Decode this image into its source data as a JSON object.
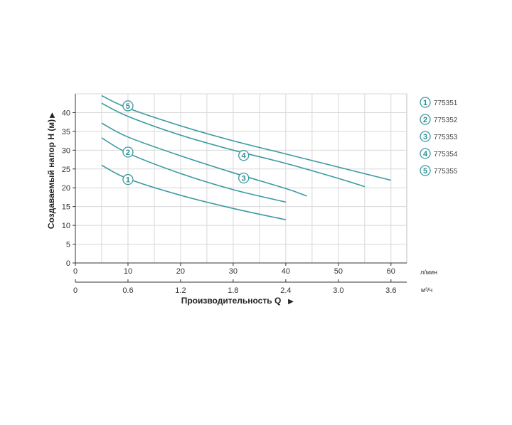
{
  "chart_data": {
    "type": "line",
    "xlabel": "Производительность Q",
    "ylabel": "Создаваемый напор H (м)",
    "x_unit_primary": "л/мин",
    "x_unit_secondary": "м³/ч",
    "xlim": [
      0,
      63
    ],
    "ylim": [
      0,
      45
    ],
    "x_ticks": [
      0,
      10,
      20,
      30,
      40,
      50,
      60
    ],
    "x_tick_labels": [
      "0",
      "10",
      "20",
      "30",
      "40",
      "50",
      "60"
    ],
    "x2_ticks": [
      0,
      10,
      20,
      30,
      40,
      50,
      60
    ],
    "x2_tick_labels": [
      "0",
      "0.6",
      "1.2",
      "1.8",
      "2.4",
      "3.0",
      "3.6"
    ],
    "y_ticks": [
      0,
      5,
      10,
      15,
      20,
      25,
      30,
      35,
      40
    ],
    "y_tick_labels": [
      "0",
      "5",
      "10",
      "15",
      "20",
      "25",
      "30",
      "35",
      "40"
    ],
    "grid": true,
    "legend_position": "right",
    "line_color": "#3a9aa0",
    "grid_color": "#d8d8d8",
    "series": [
      {
        "name": "775351",
        "marker": "1",
        "marker_at": [
          10,
          22.2
        ],
        "x": [
          5,
          10,
          20,
          30,
          40
        ],
        "y": [
          26,
          22.4,
          18,
          14.5,
          11.5
        ]
      },
      {
        "name": "775352",
        "marker": "2",
        "marker_at": [
          10,
          29.5
        ],
        "x": [
          5,
          10,
          20,
          30,
          40
        ],
        "y": [
          33.3,
          29.2,
          23.8,
          19.5,
          16.2
        ]
      },
      {
        "name": "775353",
        "marker": "3",
        "marker_at": [
          32,
          22.6
        ],
        "x": [
          5,
          10,
          20,
          30,
          40,
          44
        ],
        "y": [
          37.2,
          33.5,
          28.5,
          24,
          19.8,
          17.8
        ]
      },
      {
        "name": "775354",
        "marker": "4",
        "marker_at": [
          32,
          28.6
        ],
        "x": [
          5,
          10,
          20,
          30,
          40,
          50,
          55
        ],
        "y": [
          42.5,
          39,
          34,
          30,
          26.5,
          22.5,
          20.3
        ]
      },
      {
        "name": "775355",
        "marker": "5",
        "marker_at": [
          10,
          41.8
        ],
        "x": [
          5,
          10,
          20,
          30,
          40,
          50,
          60
        ],
        "y": [
          44.5,
          41.2,
          36.5,
          32.5,
          29,
          25.5,
          22
        ]
      }
    ],
    "legend": [
      {
        "marker": "1",
        "label": "775351"
      },
      {
        "marker": "2",
        "label": "775352"
      },
      {
        "marker": "3",
        "label": "775353"
      },
      {
        "marker": "4",
        "label": "775354"
      },
      {
        "marker": "5",
        "label": "775355"
      }
    ]
  }
}
